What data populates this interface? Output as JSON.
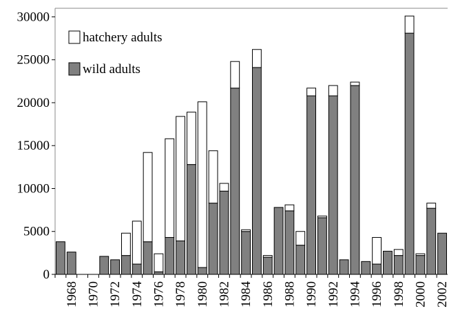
{
  "chart_data": {
    "type": "stacked-bar",
    "categories": [
      null,
      "1968",
      null,
      "1970",
      null,
      "1972",
      null,
      "1974",
      null,
      "1976",
      null,
      "1978",
      null,
      "1980",
      null,
      "1982",
      null,
      "1984",
      null,
      "1986",
      null,
      "1988",
      null,
      "1990",
      null,
      "1992",
      null,
      "1994",
      null,
      "1996",
      null,
      "1998",
      null,
      "2000",
      null,
      "2002"
    ],
    "series": [
      {
        "name": "wild adults",
        "color": "#808080",
        "values": [
          3800,
          2600,
          0,
          0,
          2100,
          1700,
          2200,
          1200,
          3800,
          300,
          4300,
          3900,
          12800,
          800,
          8300,
          9700,
          21700,
          5000,
          24100,
          2000,
          7800,
          7400,
          3400,
          20800,
          6600,
          20800,
          1700,
          22000,
          1500,
          1200,
          2700,
          2200,
          28100,
          2200,
          7700,
          4800
        ]
      },
      {
        "name": "hatchery adults",
        "color": "#ffffff",
        "values": [
          0,
          0,
          0,
          0,
          0,
          0,
          2600,
          5000,
          10400,
          2100,
          11500,
          14500,
          6100,
          19300,
          6100,
          900,
          3100,
          200,
          2100,
          200,
          0,
          700,
          1600,
          900,
          200,
          1200,
          0,
          400,
          0,
          3100,
          0,
          700,
          2000,
          200,
          600,
          0
        ]
      }
    ],
    "ylim": [
      0,
      31000
    ],
    "yticks": [
      0,
      5000,
      10000,
      15000,
      20000,
      25000,
      30000
    ],
    "legend": "top-left"
  }
}
